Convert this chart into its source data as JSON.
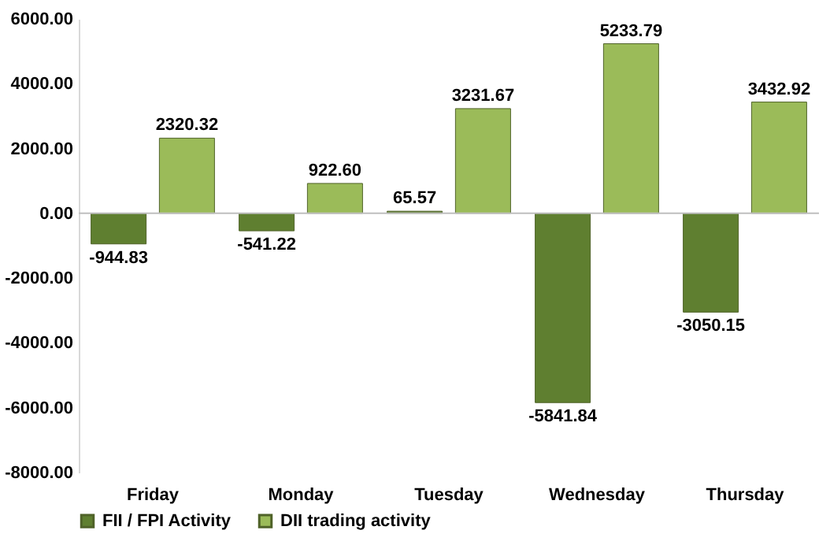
{
  "chart_data": {
    "type": "bar",
    "categories": [
      "Friday",
      "Monday",
      "Tuesday",
      "Wednesday",
      "Thursday"
    ],
    "series": [
      {
        "name": "FII / FPI Activity",
        "color": "#5f7f30",
        "values": [
          -944.83,
          -541.22,
          65.57,
          -5841.84,
          -3050.15
        ],
        "value_labels": [
          "-944.83",
          "-541.22",
          "65.57",
          "-5841.84",
          "-3050.15"
        ]
      },
      {
        "name": "DII trading activity",
        "color": "#9bbb59",
        "values": [
          2320.32,
          922.6,
          3231.67,
          5233.79,
          3432.92
        ],
        "value_labels": [
          "2320.32",
          "922.60",
          "3231.67",
          "5233.79",
          "3432.92"
        ]
      }
    ],
    "ylim": [
      -8000,
      6000
    ],
    "yticks": [
      {
        "value": 6000,
        "label": "6000.00"
      },
      {
        "value": 4000,
        "label": "4000.00"
      },
      {
        "value": 2000,
        "label": "2000.00"
      },
      {
        "value": 0,
        "label": "0.00"
      },
      {
        "value": -2000,
        "label": "-2000.00"
      },
      {
        "value": -4000,
        "label": "-4000.00"
      },
      {
        "value": -6000,
        "label": "-6000.00"
      },
      {
        "value": -8000,
        "label": "-8000.00"
      }
    ],
    "ref_lines": [
      {
        "axis": "y",
        "value": 0,
        "color": "#bfbfbf"
      }
    ],
    "grid": false,
    "legend": "bottom"
  }
}
